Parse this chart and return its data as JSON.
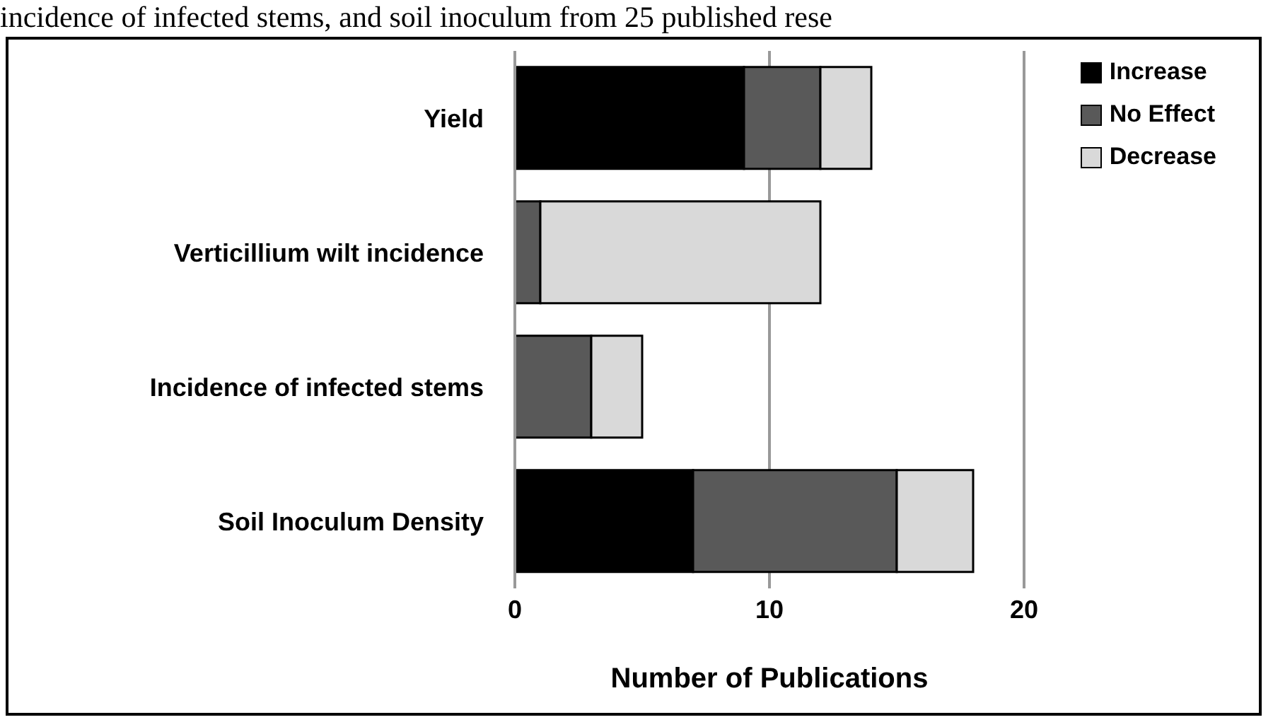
{
  "chart_data": {
    "type": "bar",
    "orientation": "horizontal",
    "stacked": true,
    "annotations": [
      "incidence of infected stems, and soil inoculum from 25 published rese"
    ],
    "categories": [
      "Yield",
      "Verticillium wilt incidence",
      "Incidence of infected stems",
      "Soil Inoculum Density"
    ],
    "series": [
      {
        "name": "Increase",
        "color": "#000000",
        "values": [
          9,
          0,
          0,
          7
        ]
      },
      {
        "name": "No Effect",
        "color": "#595959",
        "values": [
          3,
          1,
          3,
          8
        ]
      },
      {
        "name": "Decrease",
        "color": "#d9d9d9",
        "values": [
          2,
          11,
          2,
          3
        ]
      }
    ],
    "xlabel": "Number of Publications",
    "xlim": [
      0,
      20
    ],
    "xticks": [
      0,
      10,
      20
    ],
    "grid": "x",
    "legend": "top right"
  }
}
